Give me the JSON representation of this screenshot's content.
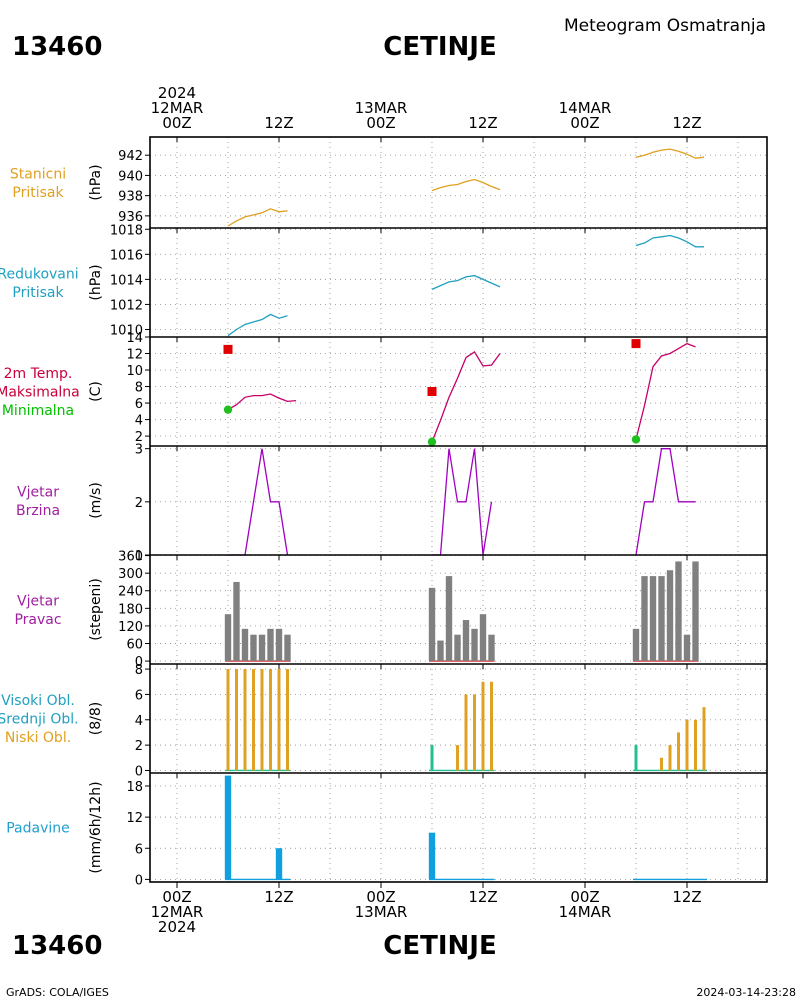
{
  "header": {
    "station_id": "13460",
    "station_name": "CETINJE",
    "product": "Meteogram Osmatranja"
  },
  "footer": {
    "station_id": "13460",
    "station_name": "CETINJE",
    "credit": "GrADS: COLA/IGES",
    "timestamp": "2024-03-14-23:28"
  },
  "time_axis": {
    "top_labels": [
      {
        "hour": 0,
        "lines": [
          "2024",
          "12MAR",
          "00Z"
        ]
      },
      {
        "hour": 12,
        "lines": [
          "12Z"
        ]
      },
      {
        "hour": 24,
        "lines": [
          "13MAR",
          "00Z"
        ]
      },
      {
        "hour": 36,
        "lines": [
          "12Z"
        ]
      },
      {
        "hour": 48,
        "lines": [
          "14MAR",
          "00Z"
        ]
      },
      {
        "hour": 60,
        "lines": [
          "12Z"
        ]
      }
    ],
    "bottom_labels": [
      {
        "hour": 0,
        "lines": [
          "00Z",
          "12MAR",
          "2024"
        ]
      },
      {
        "hour": 12,
        "lines": [
          "12Z"
        ]
      },
      {
        "hour": 24,
        "lines": [
          "00Z",
          "13MAR"
        ]
      },
      {
        "hour": 36,
        "lines": [
          "12Z"
        ]
      },
      {
        "hour": 48,
        "lines": [
          "00Z",
          "14MAR"
        ]
      },
      {
        "hour": 60,
        "lines": [
          "12Z"
        ]
      }
    ]
  },
  "chart_data": [
    {
      "id": "stanicni",
      "type": "line",
      "labels": [
        {
          "text": "Stanicni",
          "color": "#e0a020"
        },
        {
          "text": "Pritisak",
          "color": "#e0a020"
        }
      ],
      "unit": "(hPa)",
      "ylim": [
        934.8,
        943.8
      ],
      "yticks": [
        936,
        938,
        940,
        942
      ],
      "series": [
        {
          "color": "#e0a020",
          "segments": [
            [
              [
                6,
                935.0
              ],
              [
                7,
                935.5
              ],
              [
                8,
                935.9
              ],
              [
                9,
                936.1
              ],
              [
                10,
                936.3
              ],
              [
                11,
                936.7
              ],
              [
                12,
                936.4
              ],
              [
                13,
                936.5
              ]
            ],
            [
              [
                30,
                938.5
              ],
              [
                31,
                938.8
              ],
              [
                32,
                939.0
              ],
              [
                33,
                939.1
              ],
              [
                34,
                939.4
              ],
              [
                35,
                939.6
              ],
              [
                36,
                939.3
              ],
              [
                37,
                938.9
              ],
              [
                38,
                938.6
              ]
            ],
            [
              [
                54,
                941.8
              ],
              [
                55,
                942.0
              ],
              [
                56,
                942.3
              ],
              [
                57,
                942.5
              ],
              [
                58,
                942.6
              ],
              [
                59,
                942.4
              ],
              [
                60,
                942.1
              ],
              [
                61,
                941.7
              ],
              [
                62,
                941.8
              ]
            ]
          ]
        }
      ]
    },
    {
      "id": "redukovani",
      "type": "line",
      "labels": [
        {
          "text": "Redukovani",
          "color": "#20a0c0"
        },
        {
          "text": "Pritisak",
          "color": "#20a0c0"
        }
      ],
      "unit": "(hPa)",
      "ylim": [
        1009.4,
        1018.1
      ],
      "yticks": [
        1010,
        1012,
        1014,
        1016,
        1018
      ],
      "series": [
        {
          "color": "#20a0c0",
          "segments": [
            [
              [
                6,
                1009.5
              ],
              [
                7,
                1010.0
              ],
              [
                8,
                1010.4
              ],
              [
                9,
                1010.6
              ],
              [
                10,
                1010.8
              ],
              [
                11,
                1011.2
              ],
              [
                12,
                1010.9
              ],
              [
                13,
                1011.1
              ]
            ],
            [
              [
                30,
                1013.2
              ],
              [
                31,
                1013.5
              ],
              [
                32,
                1013.8
              ],
              [
                33,
                1013.9
              ],
              [
                34,
                1014.2
              ],
              [
                35,
                1014.3
              ],
              [
                36,
                1014.0
              ],
              [
                37,
                1013.7
              ],
              [
                38,
                1013.4
              ]
            ],
            [
              [
                54,
                1016.7
              ],
              [
                55,
                1016.9
              ],
              [
                56,
                1017.3
              ],
              [
                57,
                1017.4
              ],
              [
                58,
                1017.5
              ],
              [
                59,
                1017.3
              ],
              [
                60,
                1017.0
              ],
              [
                61,
                1016.6
              ],
              [
                62,
                1016.6
              ]
            ]
          ]
        }
      ]
    },
    {
      "id": "temp",
      "type": "line",
      "labels": [
        {
          "text": "2m Temp.",
          "color": "#c8003c"
        },
        {
          "text": "Maksimalna",
          "color": "#c8003c"
        },
        {
          "text": "Minimalna",
          "color": "#00c000"
        }
      ],
      "unit": "(C)",
      "ylim": [
        0.8,
        14.0
      ],
      "yticks": [
        2,
        4,
        6,
        8,
        10,
        12,
        14
      ],
      "series": [
        {
          "color": "#c8006c",
          "segments": [
            [
              [
                6,
                5.2
              ],
              [
                7,
                5.8
              ],
              [
                8,
                6.7
              ],
              [
                9,
                6.9
              ],
              [
                10,
                6.9
              ],
              [
                11,
                7.1
              ],
              [
                12,
                6.6
              ],
              [
                13,
                6.2
              ],
              [
                14,
                6.3
              ]
            ],
            [
              [
                30,
                1.3
              ],
              [
                31,
                3.9
              ],
              [
                32,
                6.7
              ],
              [
                33,
                9.0
              ],
              [
                34,
                11.5
              ],
              [
                35,
                12.2
              ],
              [
                36,
                10.5
              ],
              [
                37,
                10.6
              ],
              [
                38,
                12.0
              ]
            ],
            [
              [
                54,
                1.6
              ],
              [
                55,
                5.7
              ],
              [
                56,
                10.4
              ],
              [
                57,
                11.7
              ],
              [
                58,
                12.0
              ],
              [
                59,
                12.6
              ],
              [
                60,
                13.2
              ],
              [
                61,
                12.8
              ]
            ]
          ]
        }
      ],
      "max_markers": {
        "color": "#e00000",
        "points": [
          [
            6,
            12.5
          ],
          [
            30,
            7.4
          ],
          [
            54,
            13.2
          ]
        ]
      },
      "min_markers": {
        "color": "#20c020",
        "points": [
          [
            6,
            5.2
          ],
          [
            30,
            1.3
          ],
          [
            54,
            1.6
          ]
        ]
      }
    },
    {
      "id": "brzina",
      "type": "line",
      "labels": [
        {
          "text": "Vjetar",
          "color": "#a020a0"
        },
        {
          "text": "Brzina",
          "color": "#a020a0"
        }
      ],
      "unit": "(m/s)",
      "ylim": [
        1,
        3.05
      ],
      "yticks": [
        1,
        2,
        3
      ],
      "series": [
        {
          "color": "#a000c0",
          "segments": [
            [
              [
                6,
                1
              ],
              [
                7,
                1
              ],
              [
                8,
                1
              ],
              [
                9,
                2
              ],
              [
                10,
                3
              ],
              [
                11,
                2
              ],
              [
                12,
                2
              ],
              [
                13,
                1
              ]
            ],
            [
              [
                30,
                1
              ],
              [
                31,
                1
              ],
              [
                32,
                3
              ],
              [
                33,
                2
              ],
              [
                34,
                2
              ],
              [
                35,
                3
              ],
              [
                36,
                1
              ],
              [
                37,
                2
              ]
            ],
            [
              [
                54,
                1
              ],
              [
                55,
                2
              ],
              [
                56,
                2
              ],
              [
                57,
                3
              ],
              [
                58,
                3
              ],
              [
                59,
                2
              ],
              [
                60,
                2
              ],
              [
                61,
                2
              ]
            ]
          ]
        }
      ]
    },
    {
      "id": "pravac",
      "type": "bar",
      "labels": [
        {
          "text": "Vjetar",
          "color": "#a020a0"
        },
        {
          "text": "Pravac",
          "color": "#a020a0"
        }
      ],
      "unit": "(stepeni)",
      "ylim": [
        -10,
        362
      ],
      "yticks": [
        0,
        60,
        120,
        180,
        240,
        300,
        360
      ],
      "bar_color": "#808080",
      "bar_width_hours": 0.75,
      "bars": [
        [
          6,
          160
        ],
        [
          7,
          270
        ],
        [
          8,
          110
        ],
        [
          9,
          90
        ],
        [
          10,
          90
        ],
        [
          11,
          110
        ],
        [
          12,
          110
        ],
        [
          13,
          90
        ],
        [
          30,
          250
        ],
        [
          31,
          70
        ],
        [
          32,
          290
        ],
        [
          33,
          90
        ],
        [
          34,
          140
        ],
        [
          35,
          110
        ],
        [
          36,
          160
        ],
        [
          37,
          90
        ],
        [
          54,
          110
        ],
        [
          55,
          290
        ],
        [
          56,
          290
        ],
        [
          57,
          290
        ],
        [
          58,
          310
        ],
        [
          59,
          340
        ],
        [
          60,
          90
        ],
        [
          61,
          340
        ]
      ],
      "baseline": {
        "color": "#e03030",
        "segments": [
          [
            6,
            13
          ],
          [
            30,
            37
          ],
          [
            54,
            61
          ]
        ]
      }
    },
    {
      "id": "oblaci",
      "type": "bar",
      "labels": [
        {
          "text": "Visoki Obl.",
          "color": "#20a0c0"
        },
        {
          "text": "Srednji Obl.",
          "color": "#20a0c0"
        },
        {
          "text": "Niski Obl.",
          "color": "#e0a020"
        }
      ],
      "unit": "(8/8)",
      "ylim": [
        -0.2,
        8.4
      ],
      "yticks": [
        0,
        2,
        4,
        6,
        8
      ],
      "bar_width_hours": 0.35,
      "groups": [
        {
          "color": "#e0a020",
          "bars": [
            [
              6,
              8
            ],
            [
              7,
              8
            ],
            [
              8,
              8
            ],
            [
              9,
              8
            ],
            [
              10,
              8
            ],
            [
              11,
              8
            ],
            [
              12,
              8
            ],
            [
              13,
              8
            ],
            [
              33,
              2
            ],
            [
              34,
              6
            ],
            [
              35,
              6
            ],
            [
              36,
              7
            ],
            [
              37,
              7
            ],
            [
              57,
              1
            ],
            [
              58,
              2
            ],
            [
              59,
              3
            ],
            [
              60,
              4
            ],
            [
              61,
              4
            ],
            [
              62,
              5
            ]
          ]
        },
        {
          "color": "#20c090",
          "bars": [
            [
              30,
              2
            ],
            [
              54,
              2
            ]
          ]
        }
      ],
      "baseline": {
        "color": "#20c090",
        "segments": [
          [
            6,
            13
          ],
          [
            30,
            37
          ],
          [
            54,
            62
          ]
        ]
      }
    },
    {
      "id": "padavine",
      "type": "bar",
      "labels": [
        {
          "text": "Padavine",
          "color": "#20a0d0"
        }
      ],
      "unit": "(mm/6h/12h)",
      "ylim": [
        -0.5,
        20.5
      ],
      "yticks": [
        0,
        6,
        12,
        18
      ],
      "bar_color": "#10a0e0",
      "bar_width_hours": 0.75,
      "bars": [
        [
          6,
          20
        ],
        [
          12,
          6
        ],
        [
          30,
          9
        ]
      ],
      "baseline": {
        "color": "#10a0e0",
        "segments": [
          [
            6,
            13
          ],
          [
            30,
            37
          ],
          [
            54,
            62
          ]
        ]
      }
    }
  ]
}
